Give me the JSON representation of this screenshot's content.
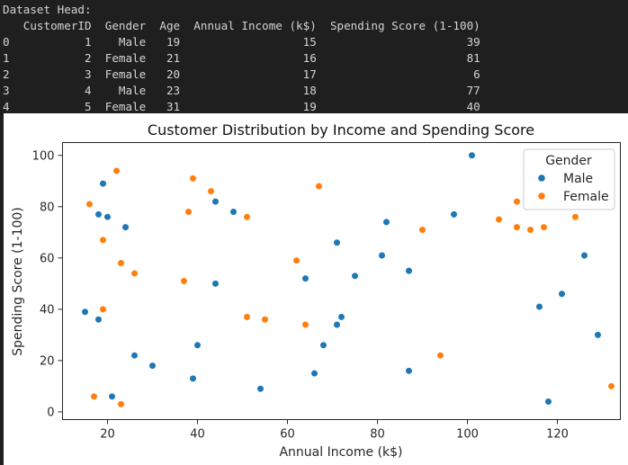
{
  "console": {
    "lines": [
      "Dataset Head:",
      "   CustomerID  Gender  Age  Annual Income (k$)  Spending Score (1-100)",
      "0           1    Male   19                  15                      39",
      "1           2  Female   21                  16                      81",
      "2           3  Female   20                  17                       6",
      "3           4    Male   23                  18                      77",
      "4           5  Female   31                  19                      40"
    ]
  },
  "chart_data": {
    "type": "scatter",
    "title": "Customer Distribution by Income and Spending Score",
    "xlabel": "Annual Income (k$)",
    "ylabel": "Spending Score (1-100)",
    "xlim": [
      10,
      134
    ],
    "ylim": [
      -3,
      105
    ],
    "xticks": [
      20,
      40,
      60,
      80,
      100,
      120
    ],
    "yticks": [
      0,
      20,
      40,
      60,
      80,
      100
    ],
    "grid": false,
    "legend": {
      "title": "Gender",
      "position": "top-right"
    },
    "series": [
      {
        "name": "Male",
        "color": "#1f77b4",
        "points": [
          [
            15,
            39
          ],
          [
            18,
            77
          ],
          [
            18,
            36
          ],
          [
            19,
            89
          ],
          [
            20,
            76
          ],
          [
            21,
            6
          ],
          [
            24,
            72
          ],
          [
            26,
            22
          ],
          [
            30,
            18
          ],
          [
            39,
            13
          ],
          [
            40,
            26
          ],
          [
            44,
            82
          ],
          [
            44,
            50
          ],
          [
            48,
            78
          ],
          [
            54,
            9
          ],
          [
            64,
            52
          ],
          [
            66,
            15
          ],
          [
            68,
            26
          ],
          [
            71,
            66
          ],
          [
            71,
            34
          ],
          [
            72,
            37
          ],
          [
            75,
            53
          ],
          [
            81,
            61
          ],
          [
            82,
            74
          ],
          [
            87,
            55
          ],
          [
            87,
            16
          ],
          [
            97,
            77
          ],
          [
            101,
            100
          ],
          [
            116,
            41
          ],
          [
            118,
            4
          ],
          [
            121,
            46
          ],
          [
            126,
            61
          ],
          [
            129,
            30
          ]
        ]
      },
      {
        "name": "Female",
        "color": "#ff7f0e",
        "points": [
          [
            16,
            81
          ],
          [
            17,
            6
          ],
          [
            19,
            67
          ],
          [
            19,
            40
          ],
          [
            22,
            94
          ],
          [
            23,
            3
          ],
          [
            23,
            58
          ],
          [
            26,
            54
          ],
          [
            37,
            51
          ],
          [
            38,
            78
          ],
          [
            39,
            91
          ],
          [
            43,
            86
          ],
          [
            51,
            76
          ],
          [
            51,
            37
          ],
          [
            55,
            36
          ],
          [
            62,
            59
          ],
          [
            64,
            34
          ],
          [
            67,
            88
          ],
          [
            90,
            71
          ],
          [
            94,
            22
          ],
          [
            107,
            75
          ],
          [
            111,
            82
          ],
          [
            111,
            72
          ],
          [
            114,
            71
          ],
          [
            117,
            72
          ],
          [
            124,
            76
          ],
          [
            132,
            10
          ]
        ]
      }
    ]
  }
}
